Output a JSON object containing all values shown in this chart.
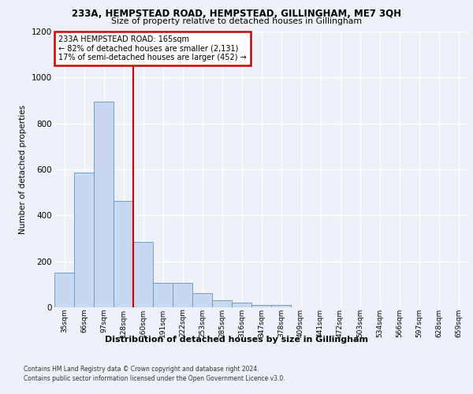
{
  "title1": "233A, HEMPSTEAD ROAD, HEMPSTEAD, GILLINGHAM, ME7 3QH",
  "title2": "Size of property relative to detached houses in Gillingham",
  "xlabel": "Distribution of detached houses by size in Gillingham",
  "ylabel": "Number of detached properties",
  "categories": [
    "35sqm",
    "66sqm",
    "97sqm",
    "128sqm",
    "160sqm",
    "191sqm",
    "222sqm",
    "253sqm",
    "285sqm",
    "316sqm",
    "347sqm",
    "378sqm",
    "409sqm",
    "441sqm",
    "472sqm",
    "503sqm",
    "534sqm",
    "566sqm",
    "597sqm",
    "628sqm",
    "659sqm"
  ],
  "values": [
    152,
    585,
    895,
    462,
    285,
    107,
    107,
    62,
    30,
    22,
    10,
    10,
    0,
    0,
    0,
    0,
    0,
    0,
    0,
    0,
    0
  ],
  "bar_color": "#c8d8f0",
  "bar_edge_color": "#6b9ec8",
  "vline_x": 3.5,
  "annotation_title": "233A HEMPSTEAD ROAD: 165sqm",
  "annotation_line1": "← 82% of detached houses are smaller (2,131)",
  "annotation_line2": "17% of semi-detached houses are larger (452) →",
  "annotation_box_color": "#ffffff",
  "annotation_box_edge_color": "#cc0000",
  "vline_color": "#cc0000",
  "ylim": [
    0,
    1200
  ],
  "yticks": [
    0,
    200,
    400,
    600,
    800,
    1000,
    1200
  ],
  "footer1": "Contains HM Land Registry data © Crown copyright and database right 2024.",
  "footer2": "Contains public sector information licensed under the Open Government Licence v3.0.",
  "bg_color": "#eef2f8",
  "grid_color": "#ffffff"
}
